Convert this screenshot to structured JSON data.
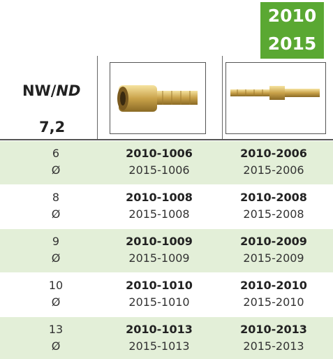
{
  "header": {
    "badge": [
      "2010",
      "2015"
    ],
    "label_prefix": "NW/",
    "label_italic": "ND",
    "size": "7,2"
  },
  "table": {
    "rows": [
      {
        "size": "6",
        "symbol": "Ø",
        "col1": [
          "2010-1006",
          "2015-1006"
        ],
        "col2": [
          "2010-2006",
          "2015-2006"
        ]
      },
      {
        "size": "8",
        "symbol": "Ø",
        "col1": [
          "2010-1008",
          "2015-1008"
        ],
        "col2": [
          "2010-2008",
          "2015-2008"
        ]
      },
      {
        "size": "9",
        "symbol": "Ø",
        "col1": [
          "2010-1009",
          "2015-1009"
        ],
        "col2": [
          "2010-2009",
          "2015-2009"
        ]
      },
      {
        "size": "10",
        "symbol": "Ø",
        "col1": [
          "2010-1010",
          "2015-1010"
        ],
        "col2": [
          "2010-2010",
          "2015-2010"
        ]
      },
      {
        "size": "13",
        "symbol": "Ø",
        "col1": [
          "2010-1013",
          "2015-1013"
        ],
        "col2": [
          "2010-2013",
          "2015-2013"
        ]
      }
    ]
  }
}
